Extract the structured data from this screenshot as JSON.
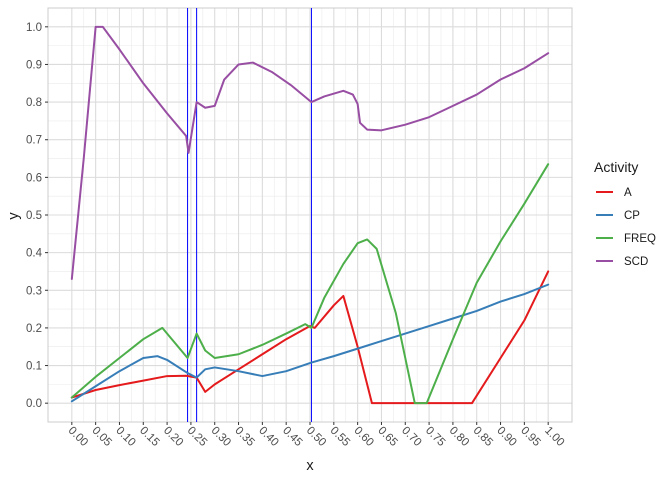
{
  "chart_data": {
    "type": "line",
    "title": "",
    "xlabel": "x",
    "ylabel": "y",
    "xlim": [
      -0.05,
      1.05
    ],
    "ylim": [
      -0.05,
      1.05
    ],
    "x_ticks": [
      "0.00",
      "0.05",
      "0.10",
      "0.15",
      "0.20",
      "0.25",
      "0.30",
      "0.35",
      "0.40",
      "0.45",
      "0.50",
      "0.55",
      "0.60",
      "0.65",
      "0.70",
      "0.75",
      "0.80",
      "0.85",
      "0.90",
      "0.95",
      "1.00"
    ],
    "y_ticks": [
      "0.0",
      "0.1",
      "0.2",
      "0.3",
      "0.4",
      "0.5",
      "0.6",
      "0.7",
      "0.8",
      "0.9",
      "1.0"
    ],
    "grid": true,
    "legend": {
      "title": "Activity",
      "placement": "right"
    },
    "vlines": [
      {
        "x": 0.243,
        "color": "#0000ff"
      },
      {
        "x": 0.262,
        "color": "#0000ff"
      },
      {
        "x": 0.503,
        "color": "#0000ff"
      }
    ],
    "series": [
      {
        "name": "A",
        "color": "#e41a1c",
        "points": [
          [
            0.0,
            0.015
          ],
          [
            0.05,
            0.035
          ],
          [
            0.1,
            0.048
          ],
          [
            0.15,
            0.06
          ],
          [
            0.2,
            0.072
          ],
          [
            0.24,
            0.073
          ],
          [
            0.262,
            0.068
          ],
          [
            0.28,
            0.03
          ],
          [
            0.3,
            0.05
          ],
          [
            0.35,
            0.09
          ],
          [
            0.4,
            0.13
          ],
          [
            0.45,
            0.17
          ],
          [
            0.5,
            0.205
          ],
          [
            0.51,
            0.2
          ],
          [
            0.55,
            0.26
          ],
          [
            0.57,
            0.285
          ],
          [
            0.6,
            0.15
          ],
          [
            0.63,
            0.0
          ],
          [
            0.7,
            0.0
          ],
          [
            0.75,
            0.0
          ],
          [
            0.8,
            0.0
          ],
          [
            0.84,
            0.0
          ],
          [
            0.9,
            0.12
          ],
          [
            0.95,
            0.22
          ],
          [
            1.0,
            0.35
          ]
        ]
      },
      {
        "name": "CP",
        "color": "#377eb8",
        "points": [
          [
            0.0,
            0.005
          ],
          [
            0.05,
            0.045
          ],
          [
            0.1,
            0.085
          ],
          [
            0.15,
            0.12
          ],
          [
            0.18,
            0.125
          ],
          [
            0.2,
            0.115
          ],
          [
            0.243,
            0.08
          ],
          [
            0.262,
            0.068
          ],
          [
            0.28,
            0.09
          ],
          [
            0.3,
            0.095
          ],
          [
            0.35,
            0.085
          ],
          [
            0.4,
            0.072
          ],
          [
            0.45,
            0.085
          ],
          [
            0.503,
            0.108
          ],
          [
            0.55,
            0.125
          ],
          [
            0.6,
            0.145
          ],
          [
            0.65,
            0.165
          ],
          [
            0.7,
            0.185
          ],
          [
            0.75,
            0.205
          ],
          [
            0.8,
            0.225
          ],
          [
            0.85,
            0.245
          ],
          [
            0.9,
            0.27
          ],
          [
            0.95,
            0.29
          ],
          [
            1.0,
            0.315
          ]
        ]
      },
      {
        "name": "FREQ",
        "color": "#4daf4a",
        "points": [
          [
            0.0,
            0.015
          ],
          [
            0.05,
            0.07
          ],
          [
            0.1,
            0.12
          ],
          [
            0.15,
            0.17
          ],
          [
            0.19,
            0.2
          ],
          [
            0.243,
            0.12
          ],
          [
            0.262,
            0.185
          ],
          [
            0.28,
            0.14
          ],
          [
            0.3,
            0.12
          ],
          [
            0.35,
            0.13
          ],
          [
            0.4,
            0.155
          ],
          [
            0.45,
            0.185
          ],
          [
            0.49,
            0.21
          ],
          [
            0.503,
            0.2
          ],
          [
            0.53,
            0.28
          ],
          [
            0.57,
            0.37
          ],
          [
            0.6,
            0.425
          ],
          [
            0.62,
            0.435
          ],
          [
            0.64,
            0.41
          ],
          [
            0.68,
            0.24
          ],
          [
            0.72,
            0.0
          ],
          [
            0.745,
            0.0
          ],
          [
            0.8,
            0.17
          ],
          [
            0.85,
            0.32
          ],
          [
            0.9,
            0.43
          ],
          [
            0.95,
            0.53
          ],
          [
            1.0,
            0.635
          ]
        ]
      },
      {
        "name": "SCD",
        "color": "#984ea3",
        "points": [
          [
            0.0,
            0.33
          ],
          [
            0.025,
            0.65
          ],
          [
            0.05,
            1.0
          ],
          [
            0.065,
            1.0
          ],
          [
            0.1,
            0.94
          ],
          [
            0.15,
            0.85
          ],
          [
            0.2,
            0.77
          ],
          [
            0.24,
            0.71
          ],
          [
            0.245,
            0.665
          ],
          [
            0.262,
            0.8
          ],
          [
            0.28,
            0.785
          ],
          [
            0.3,
            0.79
          ],
          [
            0.32,
            0.86
          ],
          [
            0.35,
            0.9
          ],
          [
            0.38,
            0.905
          ],
          [
            0.42,
            0.88
          ],
          [
            0.46,
            0.845
          ],
          [
            0.503,
            0.8
          ],
          [
            0.53,
            0.815
          ],
          [
            0.57,
            0.83
          ],
          [
            0.59,
            0.82
          ],
          [
            0.6,
            0.795
          ],
          [
            0.605,
            0.745
          ],
          [
            0.62,
            0.727
          ],
          [
            0.65,
            0.725
          ],
          [
            0.7,
            0.74
          ],
          [
            0.75,
            0.76
          ],
          [
            0.8,
            0.79
          ],
          [
            0.85,
            0.82
          ],
          [
            0.9,
            0.86
          ],
          [
            0.95,
            0.89
          ],
          [
            1.0,
            0.93
          ]
        ]
      }
    ]
  }
}
